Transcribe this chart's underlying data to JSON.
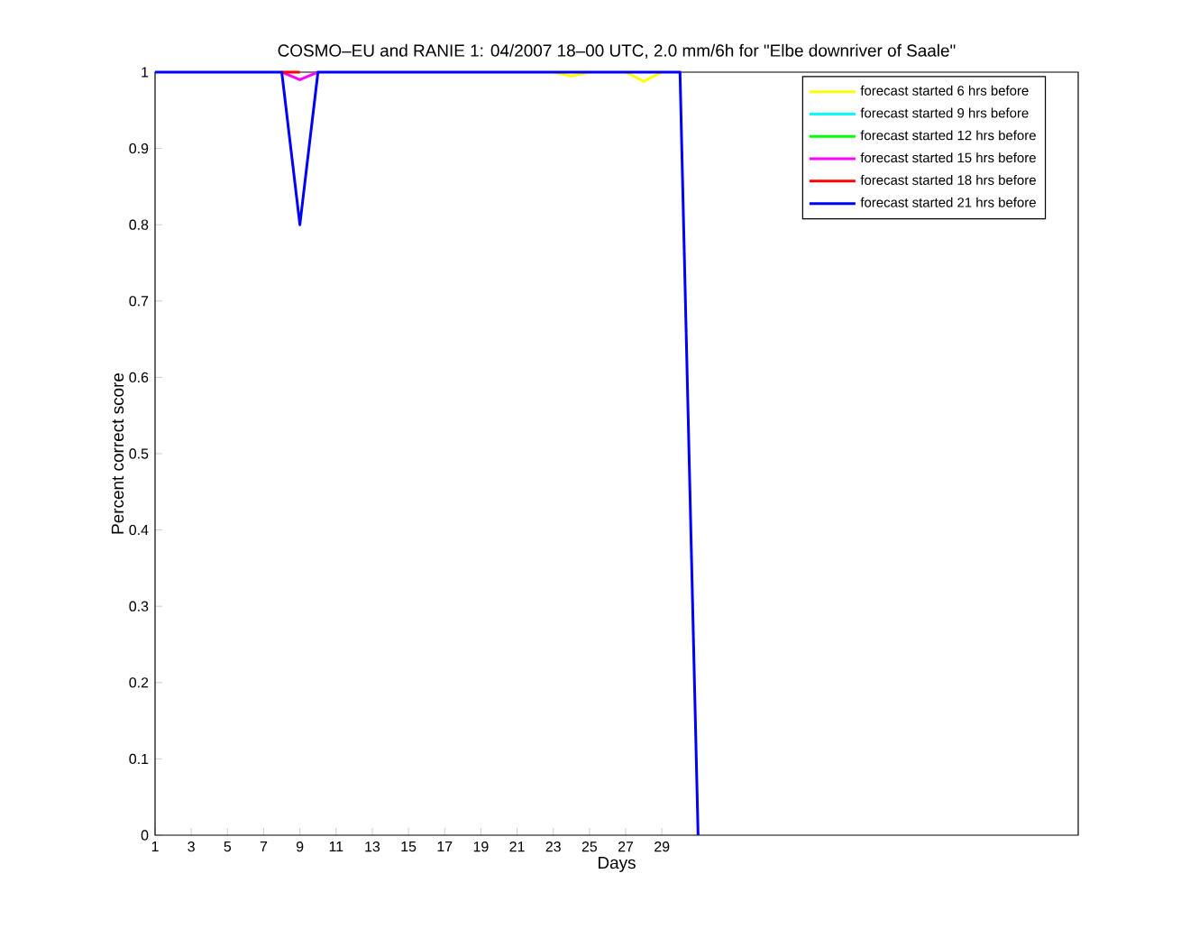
{
  "chart_data": {
    "type": "line",
    "title": "COSMO–EU and RANIE 1: 04/2007 18–00 UTC, 2.0 mm/6h for \"Elbe downriver of Saale\"",
    "xlabel": "Days",
    "ylabel": "Percent correct score",
    "x": [
      1,
      2,
      3,
      4,
      5,
      6,
      7,
      8,
      9,
      10,
      11,
      12,
      13,
      14,
      15,
      16,
      17,
      18,
      19,
      20,
      21,
      22,
      23,
      24,
      25,
      26,
      27,
      28,
      29,
      30,
      31
    ],
    "series": [
      {
        "name": "forecast started 6 hrs before",
        "color": "#ffff00",
        "values": [
          null,
          null,
          null,
          null,
          null,
          null,
          null,
          null,
          null,
          null,
          null,
          null,
          null,
          null,
          null,
          null,
          null,
          null,
          null,
          null,
          null,
          null,
          1,
          0.995,
          1,
          null,
          1,
          0.988,
          1,
          null,
          null
        ]
      },
      {
        "name": "forecast started 9 hrs before",
        "color": "#00ffff",
        "values": [
          null,
          null,
          null,
          null,
          null,
          null,
          null,
          null,
          null,
          null,
          null,
          null,
          null,
          null,
          null,
          null,
          null,
          null,
          null,
          null,
          null,
          null,
          null,
          null,
          null,
          null,
          null,
          null,
          null,
          null,
          null
        ]
      },
      {
        "name": "forecast started 12 hrs before",
        "color": "#00ff00",
        "values": [
          null,
          null,
          null,
          null,
          null,
          null,
          null,
          null,
          null,
          null,
          null,
          null,
          null,
          null,
          null,
          null,
          null,
          null,
          null,
          null,
          null,
          null,
          null,
          null,
          null,
          null,
          null,
          null,
          null,
          null,
          null
        ]
      },
      {
        "name": "forecast started 15 hrs before",
        "color": "#ff00ff",
        "values": [
          null,
          null,
          null,
          null,
          null,
          null,
          null,
          1,
          0.99,
          1,
          null,
          null,
          null,
          null,
          null,
          null,
          null,
          null,
          null,
          null,
          null,
          null,
          null,
          null,
          null,
          null,
          null,
          null,
          null,
          null,
          null
        ]
      },
      {
        "name": "forecast started 18 hrs before",
        "color": "#ff0000",
        "values": [
          null,
          null,
          null,
          null,
          null,
          null,
          null,
          1,
          1,
          null,
          null,
          null,
          null,
          null,
          null,
          null,
          null,
          null,
          null,
          null,
          null,
          null,
          null,
          null,
          null,
          null,
          null,
          null,
          null,
          null,
          null
        ]
      },
      {
        "name": "forecast started 21 hrs before",
        "color": "#0000ff",
        "values": [
          1,
          1,
          1,
          1,
          1,
          1,
          1,
          1,
          0.8,
          1,
          1,
          1,
          1,
          1,
          1,
          1,
          1,
          1,
          1,
          1,
          1,
          1,
          1,
          1,
          1,
          1,
          1,
          1,
          1,
          1,
          0
        ]
      }
    ],
    "xlim": [
      1,
      52
    ],
    "ylim": [
      0,
      1
    ],
    "xticks": [
      1,
      3,
      5,
      7,
      9,
      11,
      13,
      15,
      17,
      19,
      21,
      23,
      25,
      27,
      29
    ],
    "yticks": [
      0,
      0.1,
      0.2,
      0.3,
      0.4,
      0.5,
      0.6,
      0.7,
      0.8,
      0.9,
      1
    ],
    "legend": "top right"
  }
}
